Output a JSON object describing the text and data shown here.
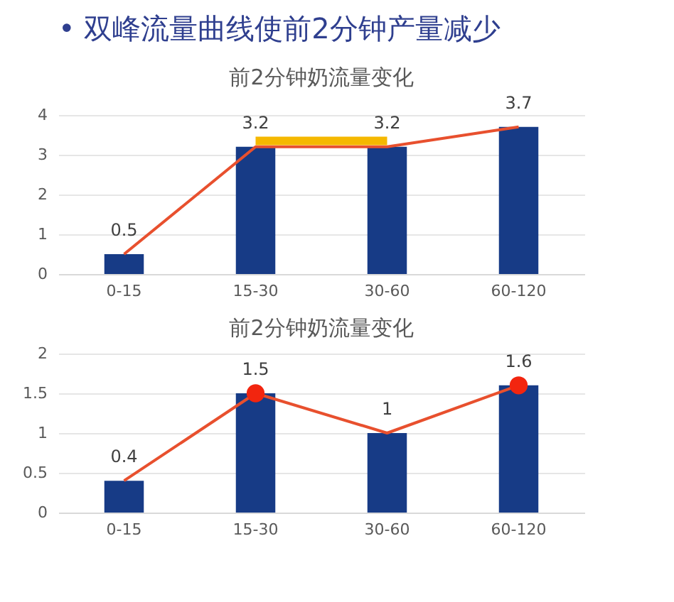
{
  "chart_data": [
    {
      "type": "bar",
      "title": "前2分钟奶流量变化",
      "annotations": [
        "• 双峰流量曲线使前2分钟产量减少"
      ],
      "categories": [
        "0-15",
        "15-30",
        "30-60",
        "60-120"
      ],
      "ylim": [
        0,
        4
      ],
      "yticks": [
        0,
        1,
        2,
        3,
        4
      ],
      "grid": "y",
      "series": [
        {
          "color": "#173b86",
          "values": [
            0.5,
            3.2,
            3.2,
            3.7
          ],
          "value_labels": [
            "0.5",
            "3.2",
            "3.2",
            "3.7"
          ]
        },
        {
          "type": "line",
          "color": "#e8502e",
          "values": [
            0.5,
            3.2,
            3.2,
            3.7
          ],
          "marker": "none"
        },
        {
          "type": "line",
          "color": "#f5b800",
          "values": [
            null,
            3.35,
            3.35,
            null
          ],
          "marker": "none"
        }
      ]
    },
    {
      "type": "bar",
      "title": "前2分钟奶流量变化",
      "categories": [
        "0-15",
        "15-30",
        "30-60",
        "60-120"
      ],
      "ylim": [
        0,
        2
      ],
      "yticks": [
        0,
        0.5,
        1,
        1.5,
        2
      ],
      "grid": "y",
      "series": [
        {
          "color": "#173b86",
          "values": [
            0.4,
            1.5,
            1.0,
            1.6
          ],
          "value_labels": [
            "0.4",
            "1.5",
            "1",
            "1.6"
          ]
        },
        {
          "type": "line",
          "color": "#e8502e",
          "values": [
            0.4,
            1.5,
            1.0,
            1.6
          ],
          "marker": "none"
        },
        {
          "type": "scatter",
          "color": "#f2250f",
          "x": [
            "15-30",
            "60-120"
          ],
          "values": [
            1.5,
            1.6
          ],
          "marker": "circle"
        }
      ]
    }
  ]
}
